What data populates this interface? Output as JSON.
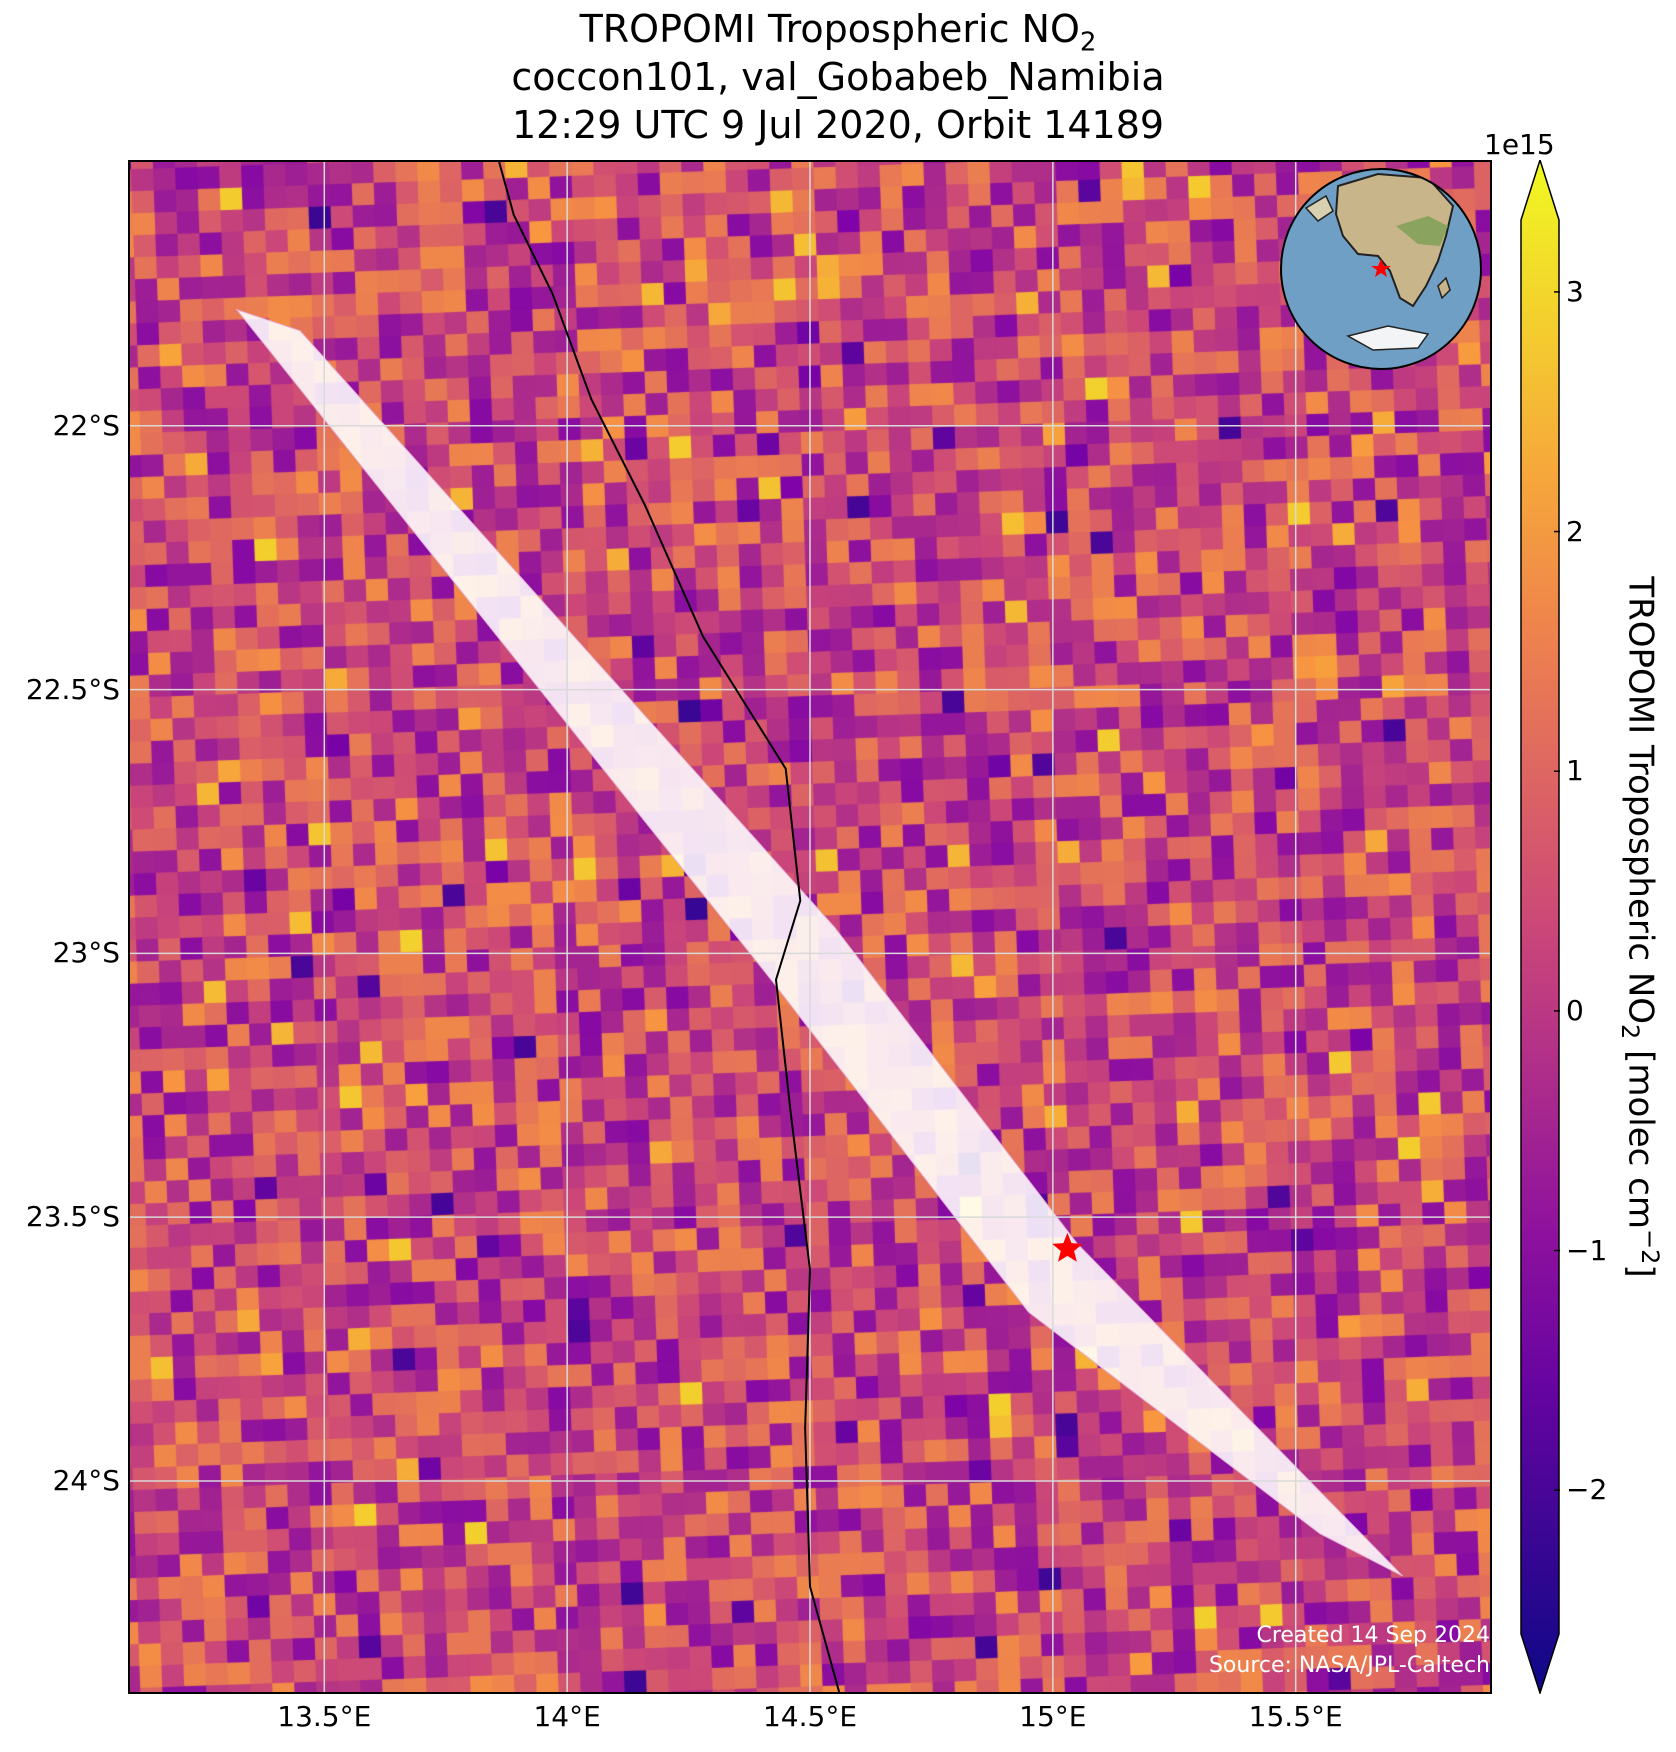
{
  "title": {
    "line1_prefix": "TROPOMI Tropospheric NO",
    "line1_sub": "2",
    "line2": "coccon101, val_Gobabeb_Namibia",
    "line3": "12:29 UTC 9 Jul 2020, Orbit 14189"
  },
  "map": {
    "lon_range": [
      13.1,
      15.9
    ],
    "lat_range": [
      -24.4,
      -21.5
    ],
    "lat_ticks": [
      {
        "value": -22.0,
        "label": "22°S"
      },
      {
        "value": -22.5,
        "label": "22.5°S"
      },
      {
        "value": -23.0,
        "label": "23°S"
      },
      {
        "value": -23.5,
        "label": "23.5°S"
      },
      {
        "value": -24.0,
        "label": "24°S"
      }
    ],
    "lon_ticks": [
      {
        "value": 13.5,
        "label": "13.5°E"
      },
      {
        "value": 14.0,
        "label": "14°E"
      },
      {
        "value": 14.5,
        "label": "14.5°E"
      },
      {
        "value": 15.0,
        "label": "15°E"
      },
      {
        "value": 15.5,
        "label": "15.5°E"
      }
    ],
    "station": {
      "lon": 15.03,
      "lat": -23.56,
      "color": "#ff0000",
      "marker": "star"
    },
    "colormap": "plasma",
    "credit_line1": "Created 14 Sep 2024",
    "credit_line2": "Source: NASA/JPL-Caltech",
    "inset_icon": "globe-africa-icon"
  },
  "colorbar": {
    "range": [
      -2.6,
      3.3
    ],
    "ticks": [
      {
        "value": -2,
        "label": "−2"
      },
      {
        "value": -1,
        "label": "−1"
      },
      {
        "value": 0,
        "label": "0"
      },
      {
        "value": 1,
        "label": "1"
      },
      {
        "value": 2,
        "label": "2"
      },
      {
        "value": 3,
        "label": "3"
      }
    ],
    "exponent": "1e15",
    "label_prefix": "TROPOMI Tropospheric NO",
    "label_sub": "2",
    "label_mid": " [molec cm",
    "label_sup": "−2",
    "label_suffix": "]"
  }
}
